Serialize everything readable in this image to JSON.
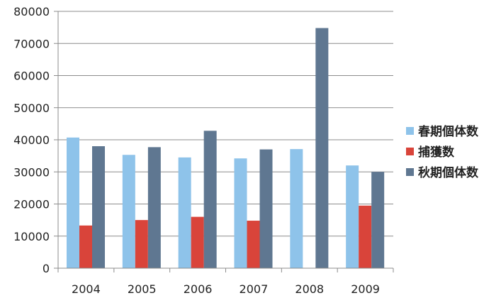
{
  "chart_data": {
    "type": "bar",
    "categories": [
      "2004",
      "2005",
      "2006",
      "2007",
      "2008",
      "2009"
    ],
    "series": [
      {
        "name": "春期個体数",
        "color": "#8ec3ea",
        "values": [
          40700,
          35300,
          34500,
          34200,
          37100,
          32000
        ]
      },
      {
        "name": "捕獲数",
        "color": "#d9443a",
        "values": [
          13300,
          15000,
          16000,
          14800,
          null,
          19500
        ]
      },
      {
        "name": "秋期個体数",
        "color": "#5f7791",
        "values": [
          38000,
          37700,
          42800,
          37000,
          74800,
          30000
        ]
      }
    ],
    "ylim": [
      0,
      80000
    ],
    "yticks": [
      "0",
      "10000",
      "20000",
      "30000",
      "40000",
      "50000",
      "60000",
      "70000",
      "80000"
    ],
    "grid": true,
    "legend_position": "right",
    "title": "",
    "xlabel": "",
    "ylabel": ""
  }
}
